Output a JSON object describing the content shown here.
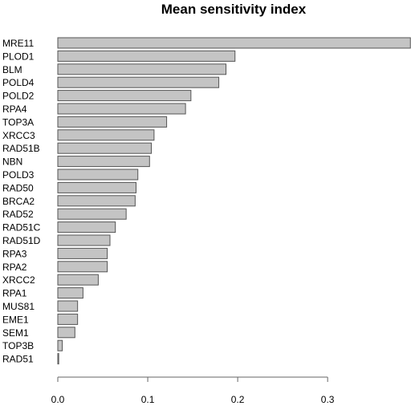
{
  "chart_data": {
    "type": "bar",
    "orientation": "horizontal",
    "title": "Mean sensitivity index",
    "xlabel": "",
    "ylabel": "",
    "xlim": [
      0,
      0.39
    ],
    "x_ticks": [
      0.0,
      0.1,
      0.2,
      0.3
    ],
    "x_tick_labels": [
      "0.0",
      "0.1",
      "0.2",
      "0.3"
    ],
    "grid": false,
    "legend": "none",
    "bar_color": "#c4c4c4",
    "bar_edge_color": "#555555",
    "categories": [
      "MRE11",
      "PLOD1",
      "BLM",
      "POLD4",
      "POLD2",
      "RPA4",
      "TOP3A",
      "XRCC3",
      "RAD51B",
      "NBN",
      "POLD3",
      "RAD50",
      "BRCA2",
      "RAD52",
      "RAD51C",
      "RAD51D",
      "RPA3",
      "RPA2",
      "XRCC2",
      "RPA1",
      "MUS81",
      "EME1",
      "SEM1",
      "TOP3B",
      "RAD51"
    ],
    "values": [
      0.392,
      0.197,
      0.187,
      0.179,
      0.148,
      0.142,
      0.121,
      0.107,
      0.104,
      0.102,
      0.089,
      0.087,
      0.086,
      0.076,
      0.064,
      0.058,
      0.055,
      0.055,
      0.045,
      0.028,
      0.022,
      0.022,
      0.019,
      0.005,
      0.001
    ]
  }
}
